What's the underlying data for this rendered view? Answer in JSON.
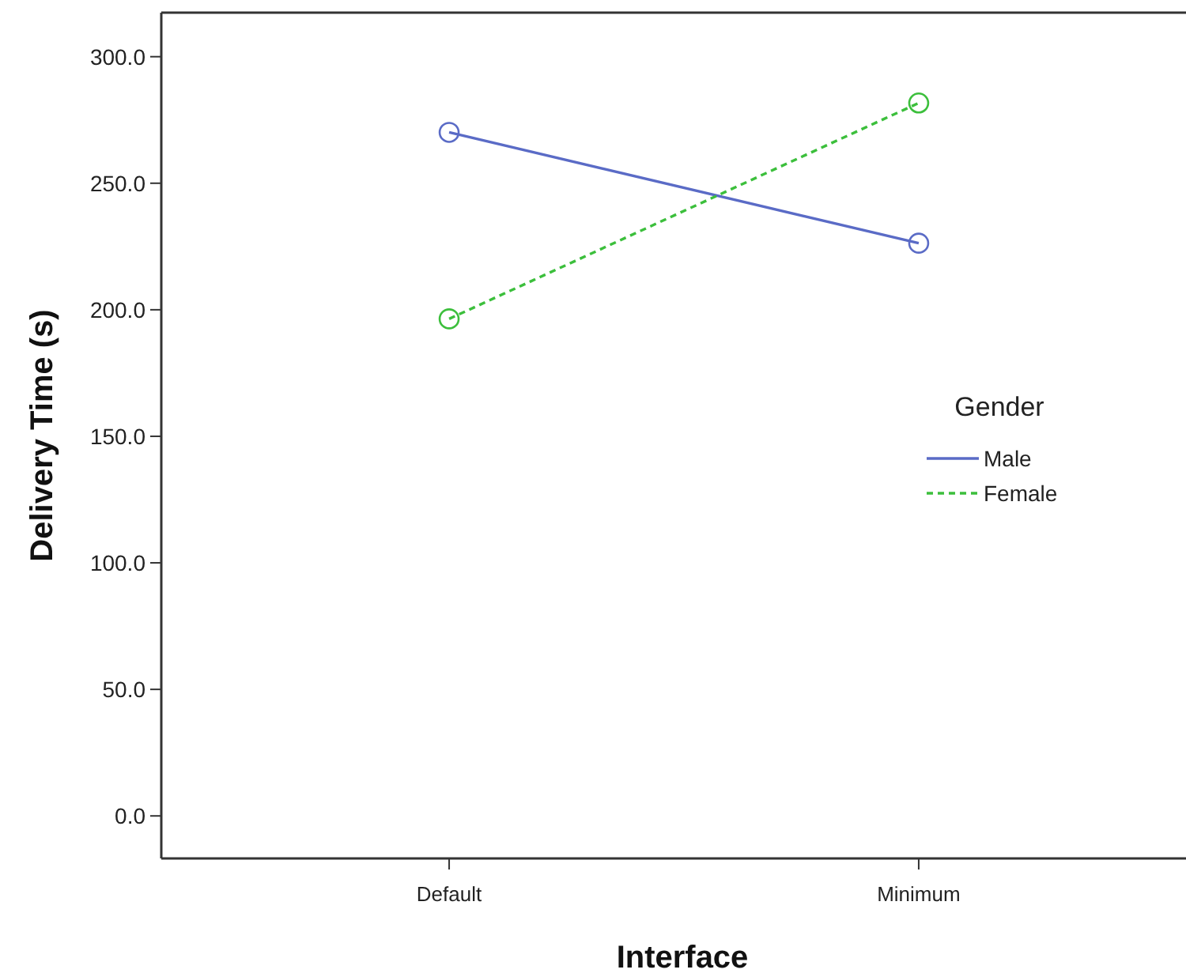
{
  "chart_data": {
    "type": "line",
    "xlabel": "Interface",
    "ylabel": "Delivery Time (s)",
    "legend_title": "Gender",
    "categories": [
      "Default",
      "Minimum"
    ],
    "series": [
      {
        "name": "Male",
        "color": "#5a6bc6",
        "values": [
          270.1,
          226.3
        ],
        "line_style": "solid"
      },
      {
        "name": "Female",
        "color": "#3cbf3c",
        "values": [
          196.4,
          281.7
        ],
        "line_style": "dashed"
      }
    ],
    "ylim": [
      -16.8,
      317.4
    ],
    "yticks": [
      {
        "value": 0,
        "label": "0.0"
      },
      {
        "value": 50,
        "label": "50.0"
      },
      {
        "value": 100,
        "label": "100.0"
      },
      {
        "value": 150,
        "label": "150.0"
      },
      {
        "value": 200,
        "label": "200.0"
      },
      {
        "value": 250,
        "label": "250.0"
      },
      {
        "value": 300,
        "label": "300.0"
      }
    ],
    "grid": false,
    "legend": "right",
    "marker": "circle"
  }
}
